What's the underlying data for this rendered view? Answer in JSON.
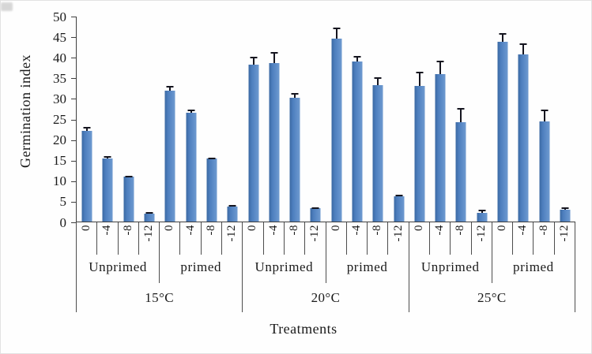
{
  "chart_data": {
    "type": "bar",
    "title": "",
    "ylabel": "Germination index",
    "xlabel": "Treatments",
    "ylim": [
      0,
      50
    ],
    "yticks": [
      50,
      45,
      40,
      35,
      30,
      25,
      20,
      15,
      10,
      5,
      0
    ],
    "grid": false,
    "legend": "none",
    "bar_color": "#4d7ebd",
    "error_color": "#15151f",
    "categories": [
      "0",
      "-4",
      "-8",
      "-12"
    ],
    "groups": [
      {
        "label": "15°C",
        "subgroups": [
          {
            "label": "Unprimed",
            "values": [
              22.2,
              15.4,
              10.9,
              2.0
            ],
            "errors": [
              0.8,
              0.5,
              0.3,
              0.3
            ]
          },
          {
            "label": "primed",
            "values": [
              32.0,
              26.5,
              15.3,
              3.7
            ],
            "errors": [
              1.0,
              0.8,
              0.3,
              0.3
            ]
          }
        ]
      },
      {
        "label": "20°C",
        "subgroups": [
          {
            "label": "Unprimed",
            "values": [
              38.2,
              38.6,
              30.2,
              3.2
            ],
            "errors": [
              2.0,
              2.7,
              1.1,
              0.3
            ]
          },
          {
            "label": "primed",
            "values": [
              44.6,
              39.0,
              33.3,
              6.2
            ],
            "errors": [
              2.7,
              1.4,
              1.9,
              0.3
            ]
          }
        ]
      },
      {
        "label": "25°C",
        "subgroups": [
          {
            "label": "Unprimed",
            "values": [
              33.0,
              36.0,
              24.3,
              2.2
            ],
            "errors": [
              3.6,
              3.2,
              3.3,
              0.6
            ]
          },
          {
            "label": "primed",
            "values": [
              43.8,
              40.8,
              24.5,
              2.8
            ],
            "errors": [
              2.1,
              2.7,
              2.9,
              0.6
            ]
          }
        ]
      }
    ]
  }
}
